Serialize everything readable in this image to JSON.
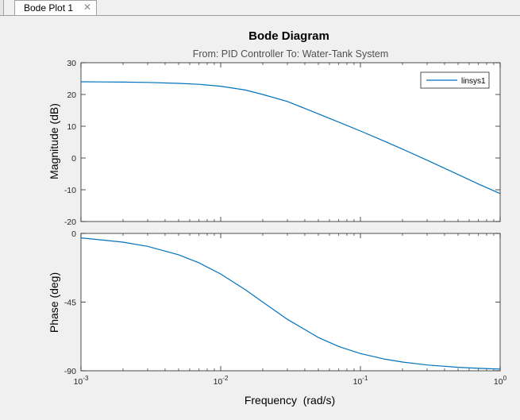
{
  "window": {
    "tab_label": "Bode Plot 1",
    "tab_close_icon": "close-icon"
  },
  "chart_data": {
    "type": "line",
    "title": "Bode Diagram",
    "subtitle": "From: PID Controller  To: Water-Tank System",
    "xlabel": "Frequency  (rad/s)",
    "x_scale": "log",
    "xlim": [
      0.001,
      1
    ],
    "x_ticks": [
      {
        "value": 0.001,
        "base": "10",
        "exp": "-3"
      },
      {
        "value": 0.01,
        "base": "10",
        "exp": "-2"
      },
      {
        "value": 0.1,
        "base": "10",
        "exp": "-1"
      },
      {
        "value": 1,
        "base": "10",
        "exp": "0"
      }
    ],
    "legend": {
      "placement": "top-right",
      "entries": [
        "linsys1"
      ]
    },
    "line_color": "#0072bd",
    "magnitude": {
      "ylabel": "Magnitude (dB)",
      "ylim": [
        -20,
        30
      ],
      "y_ticks": [
        -20,
        -10,
        0,
        10,
        20,
        30
      ],
      "series": [
        {
          "name": "linsys1",
          "x": [
            0.001,
            0.002,
            0.003,
            0.005,
            0.007,
            0.01,
            0.015,
            0.02,
            0.03,
            0.05,
            0.07,
            0.1,
            0.15,
            0.2,
            0.3,
            0.5,
            0.7,
            1.0
          ],
          "y": [
            24.0,
            23.9,
            23.8,
            23.5,
            23.2,
            22.6,
            21.4,
            20.0,
            17.8,
            13.9,
            11.3,
            8.5,
            5.2,
            2.8,
            -0.7,
            -5.2,
            -8.2,
            -11.2
          ]
        }
      ]
    },
    "phase": {
      "ylabel": "Phase (deg)",
      "ylim": [
        -90,
        0
      ],
      "y_ticks": [
        0,
        -45,
        -90
      ],
      "series": [
        {
          "name": "linsys1",
          "x": [
            0.001,
            0.002,
            0.003,
            0.005,
            0.007,
            0.01,
            0.015,
            0.02,
            0.03,
            0.05,
            0.07,
            0.1,
            0.15,
            0.2,
            0.3,
            0.5,
            0.7,
            1.0
          ],
          "y": [
            -2.9,
            -5.7,
            -8.5,
            -14.0,
            -19.3,
            -26.6,
            -36.9,
            -45.0,
            -56.3,
            -68.2,
            -74.1,
            -78.7,
            -82.4,
            -84.3,
            -86.2,
            -87.7,
            -88.4,
            -88.9
          ]
        }
      ]
    }
  }
}
